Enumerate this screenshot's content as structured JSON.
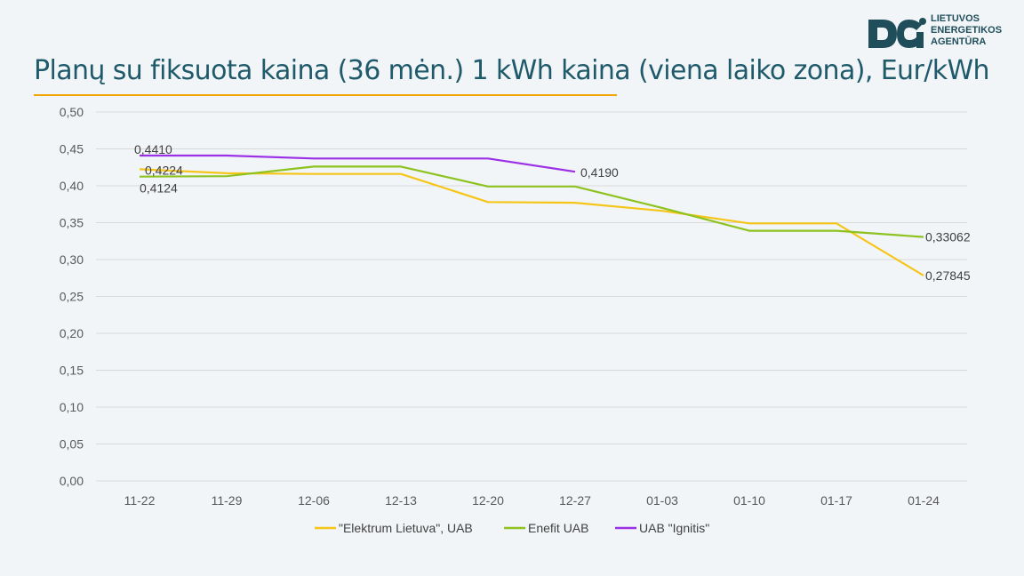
{
  "title": "Planų su fiksuota kaina (36 mėn.) 1 kWh kaina (viena laiko zona), Eur/kWh",
  "logo": {
    "lines": [
      "LIETUVOS",
      "ENERGETIKOS",
      "AGENTŪRA"
    ],
    "color": "#1f4e5a"
  },
  "colors": {
    "title": "#1f5a6b",
    "underline": "#f0a500",
    "grid": "#d9d9d9"
  },
  "chart_data": {
    "type": "line",
    "title": "Planų su fiksuota kaina (36 mėn.) 1 kWh kaina (viena laiko zona), Eur/kWh",
    "xlabel": "",
    "ylabel": "",
    "ylim": [
      0,
      0.5
    ],
    "y_ticks": [
      "0,00",
      "0,05",
      "0,10",
      "0,15",
      "0,20",
      "0,25",
      "0,30",
      "0,35",
      "0,40",
      "0,45",
      "0,50"
    ],
    "categories": [
      "11-22",
      "11-29",
      "12-06",
      "12-13",
      "12-20",
      "12-27",
      "01-03",
      "01-10",
      "01-17",
      "01-24"
    ],
    "grid": true,
    "legend_position": "bottom",
    "series": [
      {
        "name": "\"Elektrum Lietuva\", UAB",
        "color": "#f5c518",
        "values": [
          0.4224,
          0.417,
          0.416,
          0.416,
          0.378,
          0.377,
          0.366,
          0.349,
          0.349,
          0.27845
        ]
      },
      {
        "name": "Enefit UAB",
        "color": "#8dc21f",
        "values": [
          0.4124,
          0.413,
          0.426,
          0.426,
          0.399,
          0.399,
          0.37,
          0.339,
          0.339,
          0.33062
        ]
      },
      {
        "name": "UAB \"Ignitis\"",
        "color": "#9b30e6",
        "values": [
          0.441,
          0.441,
          0.437,
          0.437,
          0.437,
          0.419,
          null,
          null,
          null,
          null
        ]
      }
    ],
    "data_labels": [
      {
        "series": 2,
        "index": 0,
        "text": "0,4410"
      },
      {
        "series": 0,
        "index": 0,
        "text": "0,4224"
      },
      {
        "series": 1,
        "index": 0,
        "text": "0,4124"
      },
      {
        "series": 2,
        "index": 5,
        "text": "0,4190"
      },
      {
        "series": 1,
        "index": 9,
        "text": "0,33062"
      },
      {
        "series": 0,
        "index": 9,
        "text": "0,27845"
      }
    ]
  }
}
